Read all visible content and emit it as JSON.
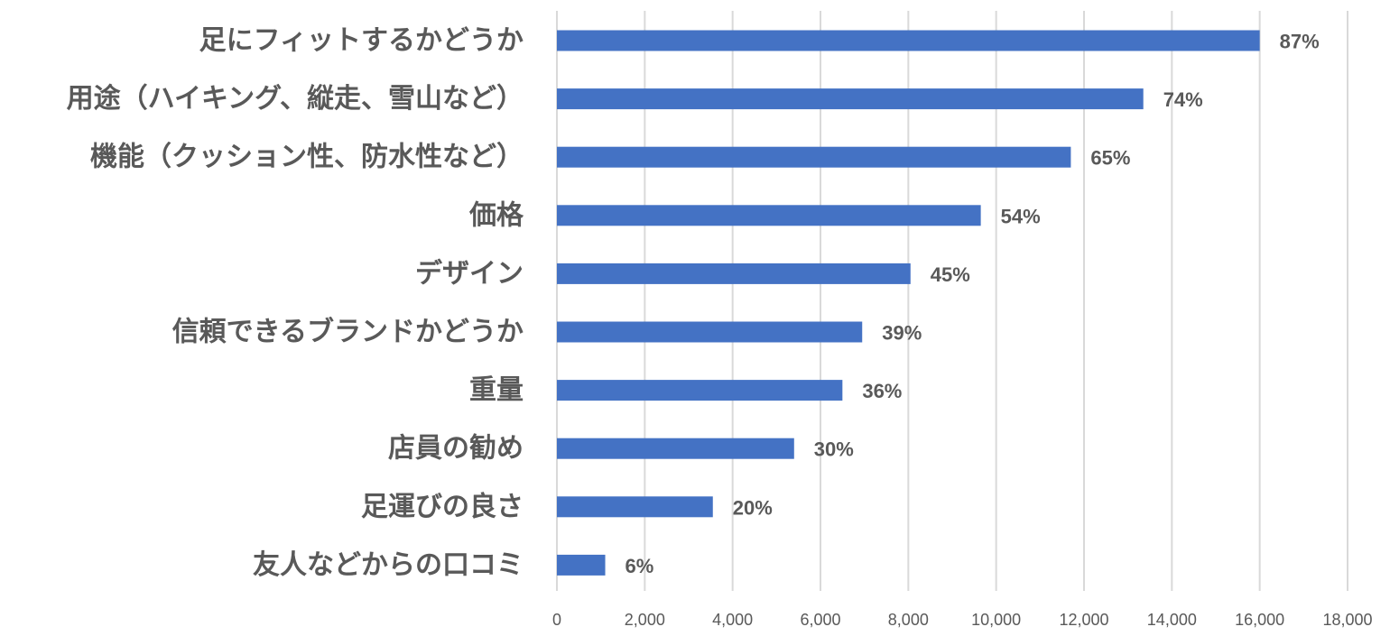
{
  "chart_data": {
    "type": "bar",
    "orientation": "horizontal",
    "title": "",
    "xlabel": "",
    "ylabel": "",
    "categories": [
      "足にフィットするかどうか",
      "用途（ハイキング、縦走、雪山など）",
      "機能（クッション性、防水性など）",
      "価格",
      "デザイン",
      "信頼できるブランドかどうか",
      "重量",
      "店員の勧め",
      "足運びの良さ",
      "友人などからの口コミ"
    ],
    "values": [
      16000,
      13350,
      11700,
      9650,
      8050,
      6950,
      6500,
      5400,
      3550,
      1100
    ],
    "data_labels": [
      "87%",
      "74%",
      "65%",
      "54%",
      "45%",
      "39%",
      "36%",
      "30%",
      "20%",
      "6%"
    ],
    "xlim": [
      0,
      18000
    ],
    "x_ticks": [
      "0",
      "2,000",
      "4,000",
      "6,000",
      "8,000",
      "10,000",
      "12,000",
      "14,000",
      "16,000",
      "18,000"
    ],
    "grid": "vertical",
    "legend": "none",
    "bar_color": "#4472c4",
    "grid_color": "#d9d9d9",
    "text_color": "#595959"
  }
}
